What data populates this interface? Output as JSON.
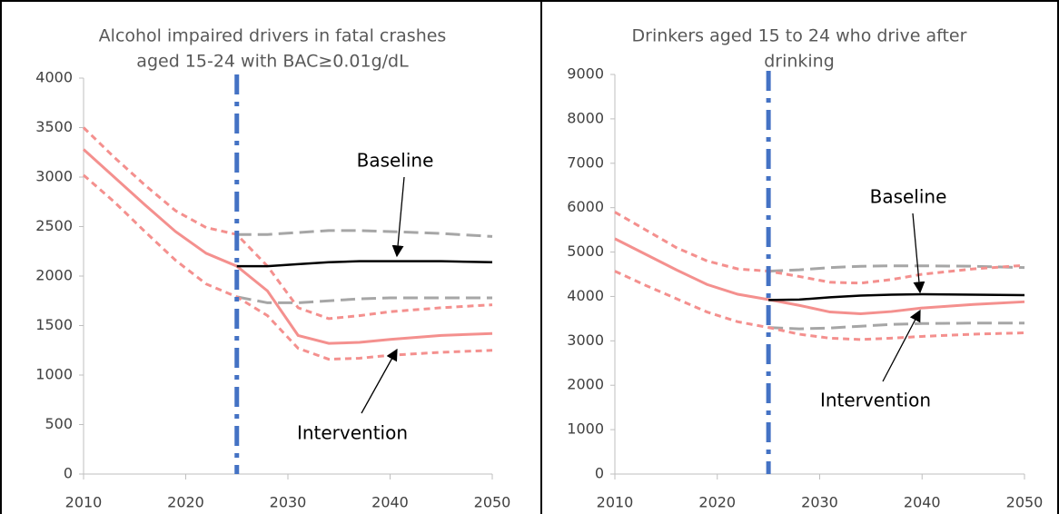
{
  "chart_data": [
    {
      "type": "line",
      "title": [
        "Alcohol impaired drivers in fatal crashes",
        "aged 15-24 with BAC≥0.01g/dL"
      ],
      "x": [
        2010,
        2013,
        2016,
        2019,
        2022,
        2025,
        2028,
        2031,
        2034,
        2037,
        2040,
        2045,
        2050
      ],
      "xlim": [
        2010,
        2050
      ],
      "xticks": [
        2010,
        2020,
        2030,
        2040,
        2050
      ],
      "ylim": [
        0,
        4000
      ],
      "yticks": [
        0,
        500,
        1000,
        1500,
        2000,
        2500,
        3000,
        3500,
        4000
      ],
      "vline": 2025,
      "vline_color": "#4472c4",
      "annotations": [
        "Baseline",
        "Intervention"
      ],
      "series": [
        {
          "color": "#a6a6a6",
          "dash": "long",
          "values": [
            null,
            null,
            null,
            null,
            null,
            2420,
            2420,
            2440,
            2460,
            2460,
            2450,
            2430,
            2400
          ]
        },
        {
          "color": "#a6a6a6",
          "dash": "long",
          "values": [
            null,
            null,
            null,
            null,
            null,
            1790,
            1730,
            1730,
            1750,
            1770,
            1780,
            1780,
            1780
          ]
        },
        {
          "color": "#f4908e",
          "dash": "short",
          "values": [
            3500,
            3200,
            2920,
            2660,
            2490,
            2420,
            2100,
            1680,
            1570,
            1600,
            1640,
            1680,
            1710
          ]
        },
        {
          "color": "#f4908e",
          "dash": "short",
          "values": [
            3020,
            2750,
            2450,
            2160,
            1920,
            1790,
            1600,
            1270,
            1160,
            1170,
            1200,
            1230,
            1250
          ]
        },
        {
          "color": "#f4908e",
          "dash": "solid",
          "values": [
            3280,
            3000,
            2720,
            2450,
            2230,
            2100,
            1850,
            1400,
            1320,
            1330,
            1360,
            1400,
            1420
          ]
        },
        {
          "color": "#000000",
          "dash": "solid",
          "values": [
            null,
            null,
            null,
            null,
            null,
            2100,
            2100,
            2120,
            2140,
            2150,
            2150,
            2150,
            2140
          ]
        }
      ]
    },
    {
      "type": "line",
      "title": [
        "Drinkers aged 15 to 24 who drive after",
        "drinking"
      ],
      "x": [
        2010,
        2013,
        2016,
        2019,
        2022,
        2025,
        2028,
        2031,
        2034,
        2037,
        2040,
        2045,
        2050
      ],
      "xlim": [
        2010,
        2050
      ],
      "xticks": [
        2010,
        2020,
        2030,
        2040,
        2050
      ],
      "ylim": [
        0,
        9000
      ],
      "yticks": [
        0,
        1000,
        2000,
        3000,
        4000,
        5000,
        6000,
        7000,
        8000,
        9000
      ],
      "vline": 2025,
      "vline_color": "#4472c4",
      "annotations": [
        "Baseline",
        "Intervention"
      ],
      "series": [
        {
          "color": "#a6a6a6",
          "dash": "long",
          "values": [
            null,
            null,
            null,
            null,
            null,
            4570,
            4600,
            4650,
            4680,
            4690,
            4690,
            4680,
            4650
          ]
        },
        {
          "color": "#a6a6a6",
          "dash": "long",
          "values": [
            null,
            null,
            null,
            null,
            null,
            3300,
            3270,
            3290,
            3330,
            3370,
            3390,
            3400,
            3400
          ]
        },
        {
          "color": "#f4908e",
          "dash": "short",
          "values": [
            5900,
            5500,
            5100,
            4800,
            4620,
            4570,
            4450,
            4320,
            4300,
            4380,
            4500,
            4620,
            4700
          ]
        },
        {
          "color": "#f4908e",
          "dash": "short",
          "values": [
            4570,
            4250,
            3950,
            3650,
            3430,
            3300,
            3150,
            3060,
            3030,
            3060,
            3100,
            3150,
            3180
          ]
        },
        {
          "color": "#f4908e",
          "dash": "solid",
          "values": [
            5300,
            4950,
            4600,
            4270,
            4050,
            3930,
            3800,
            3650,
            3610,
            3660,
            3740,
            3820,
            3880
          ]
        },
        {
          "color": "#000000",
          "dash": "solid",
          "values": [
            null,
            null,
            null,
            null,
            null,
            3920,
            3930,
            3980,
            4020,
            4040,
            4050,
            4040,
            4030
          ]
        }
      ]
    }
  ]
}
